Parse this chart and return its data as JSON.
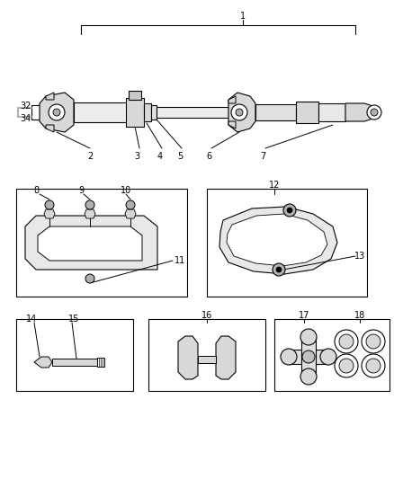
{
  "background_color": "#ffffff",
  "fig_width": 4.38,
  "fig_height": 5.33,
  "dpi": 100,
  "line_color": "#000000",
  "gray_light": "#d8d8d8",
  "gray_mid": "#b0b0b0",
  "gray_dark": "#808080"
}
